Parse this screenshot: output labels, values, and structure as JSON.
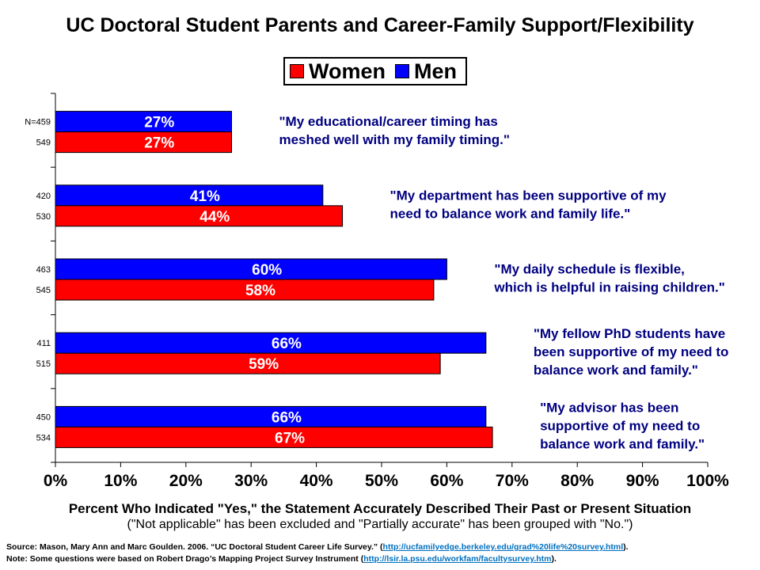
{
  "chart_data": {
    "type": "bar",
    "orientation": "horizontal",
    "title": "UC Doctoral Student Parents and Career-Family Support/Flexibility",
    "xlabel": "Percent Who Indicated \"Yes,\" the Statement Accurately Described Their Past or Present Situation",
    "xlabel_note": "(\"Not applicable\" has been excluded and \"Partially accurate\" has been grouped with \"No.\")",
    "xlim": [
      0,
      100
    ],
    "xticks": [
      "0%",
      "10%",
      "20%",
      "30%",
      "40%",
      "50%",
      "60%",
      "70%",
      "80%",
      "90%",
      "100%"
    ],
    "legend_position": "top-center",
    "grid": false,
    "categories": [
      "\"My educational/career timing has meshed well with my family timing.\"",
      "\"My department has been supportive of my need to balance work and family life.\"",
      "\"My daily schedule is flexible, which is helpful in raising children.\"",
      "\"My fellow PhD students have been supportive of my need to balance work and family.\"",
      "\"My advisor has been supportive of my need to balance work and family.\""
    ],
    "category_lines": [
      [
        "\"My educational/career timing has",
        "meshed well with my family timing.\""
      ],
      [
        "\"My department has been supportive of my",
        "need to balance work and family life.\""
      ],
      [
        "\"My daily schedule is flexible,",
        "which is helpful in raising children.\""
      ],
      [
        "\"My fellow PhD students have",
        "been supportive of my need to",
        "balance work and family.\""
      ],
      [
        "\"My advisor has been",
        "supportive of my need to",
        "balance work and family.\""
      ]
    ],
    "series": [
      {
        "name": "Men",
        "color": "#0000ff",
        "values": [
          27,
          41,
          60,
          66,
          66
        ],
        "labels": [
          "27%",
          "41%",
          "60%",
          "66%",
          "66%"
        ],
        "n": [
          "N=459",
          "420",
          "463",
          "411",
          "450"
        ]
      },
      {
        "name": "Women",
        "color": "#ff0000",
        "values": [
          27,
          44,
          58,
          59,
          67
        ],
        "labels": [
          "27%",
          "44%",
          "58%",
          "59%",
          "67%"
        ],
        "n": [
          "549",
          "530",
          "545",
          "515",
          "534"
        ]
      }
    ],
    "legend": [
      {
        "name": "Women",
        "color": "#ff0000"
      },
      {
        "name": "Men",
        "color": "#0000ff"
      }
    ],
    "quote_color": "#000080",
    "label_color": "#ffffff"
  },
  "footnotes": {
    "source_prefix": "Source: Mason, Mary Ann  and Marc Goulden.  2006. “UC Doctoral  Student Career Life Survey.” (",
    "source_link": "http://ucfamilyedge.berkeley.edu/grad%20life%20survey.html",
    "source_suffix": ").",
    "note_prefix": "Note:  Some questions were based on Robert Drago’s Mapping Project Survey Instrument (",
    "note_link": "http://lsir.la.psu.edu/workfam/facultysurvey.htm",
    "note_suffix": ")."
  }
}
